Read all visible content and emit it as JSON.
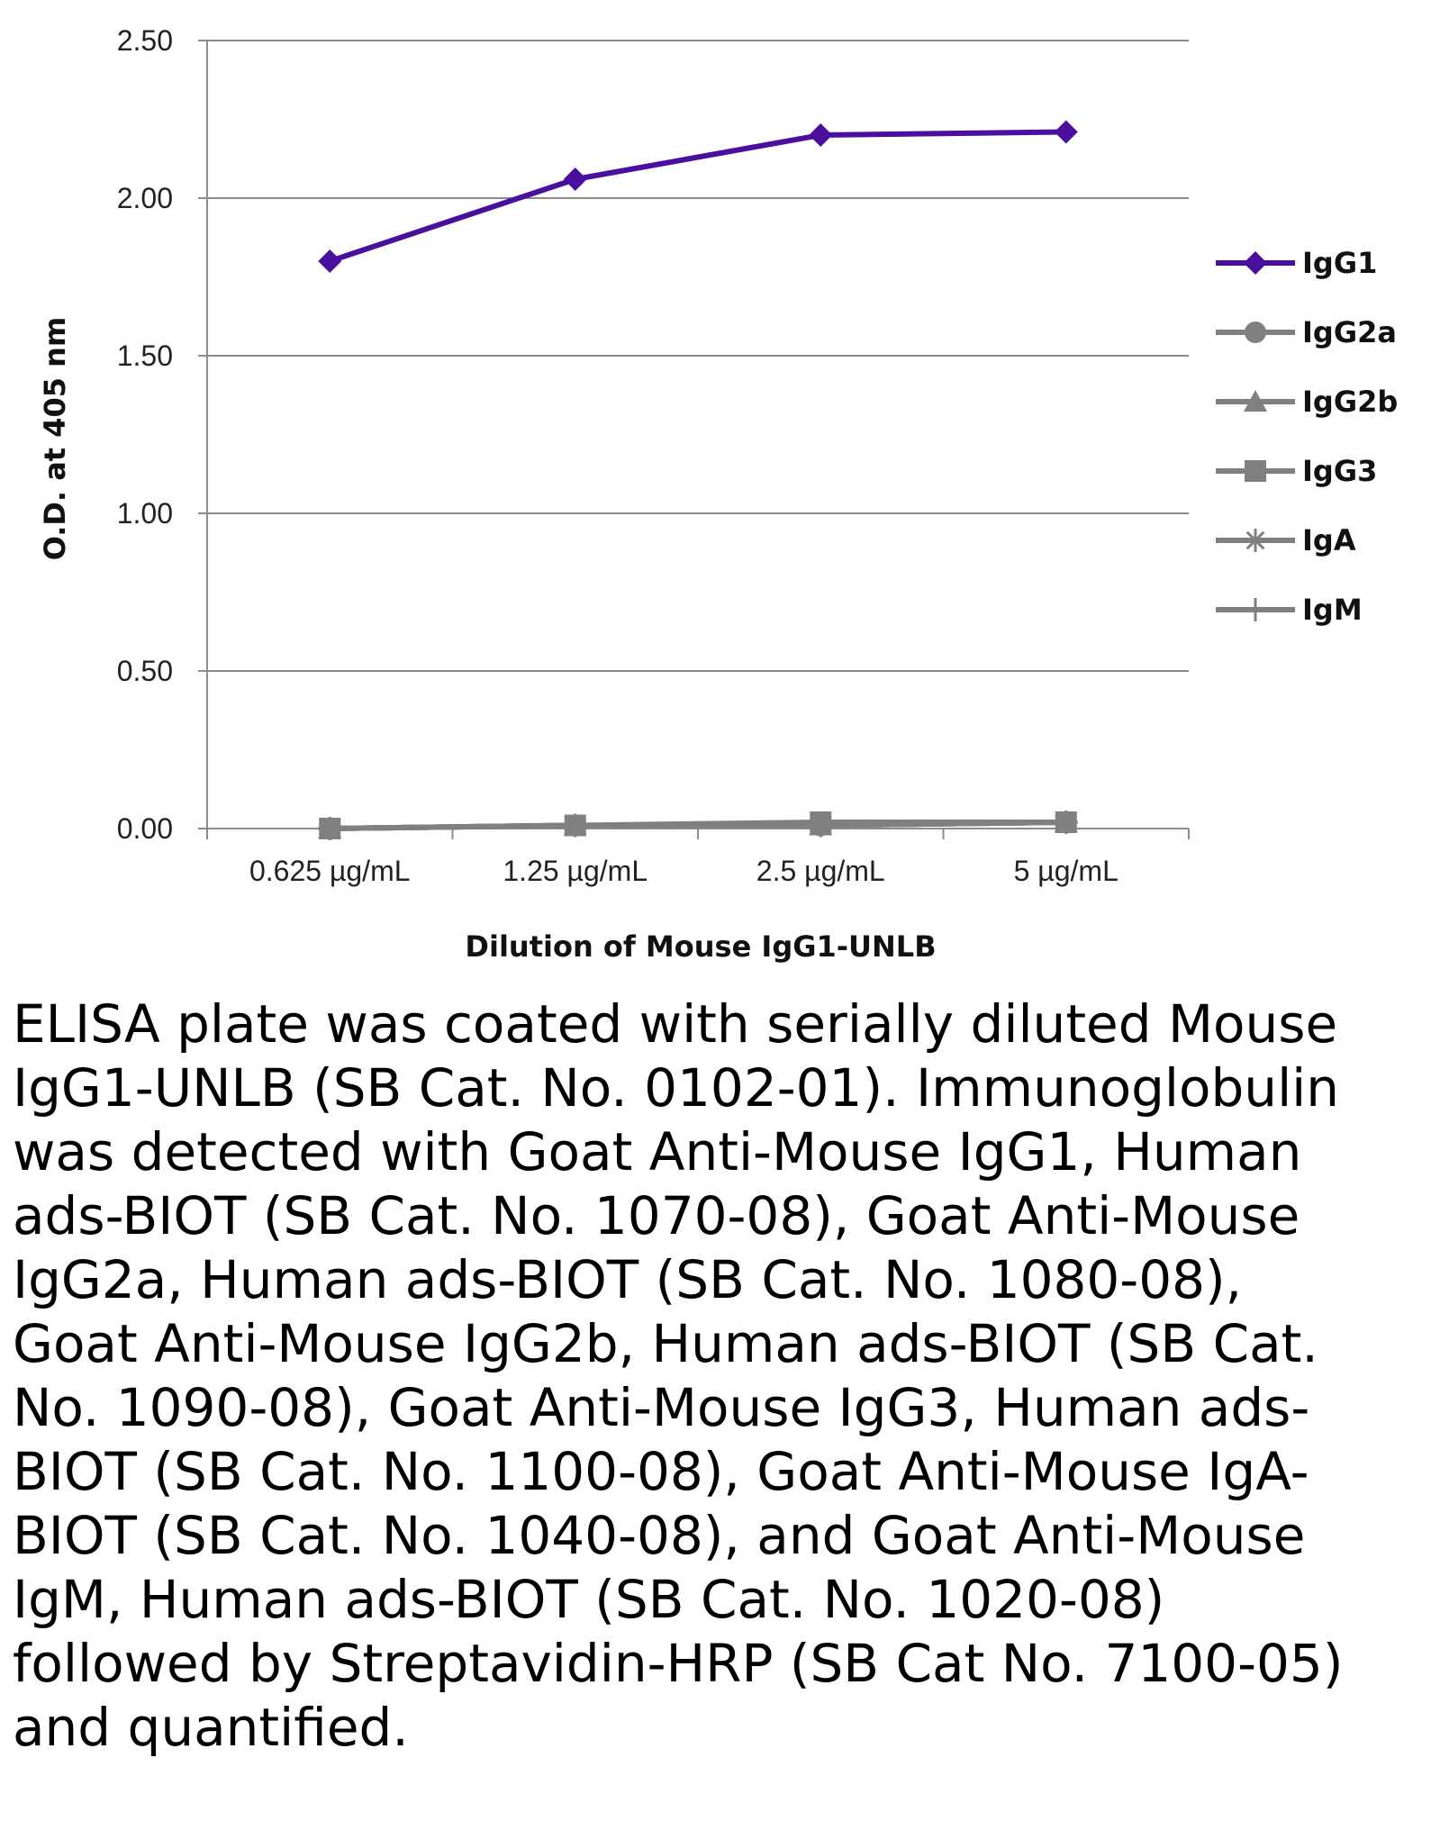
{
  "chart_data": {
    "type": "line",
    "title": "",
    "xlabel": "Dilution of Mouse IgG1-UNLB",
    "ylabel": "O.D. at 405 nm",
    "categories": [
      "0.625 µg/mL",
      "1.25 µg/mL",
      "2.5 µg/mL",
      "5 µg/mL"
    ],
    "ylim": [
      0,
      2.5
    ],
    "yticks": [
      "0.00",
      "0.50",
      "1.00",
      "1.50",
      "2.00",
      "2.50"
    ],
    "grid": true,
    "legend_position": "right",
    "series": [
      {
        "name": "IgG1",
        "marker": "diamond",
        "color": "#4b0fa0",
        "values": [
          1.8,
          2.06,
          2.2,
          2.21
        ]
      },
      {
        "name": "IgG2a",
        "marker": "circle",
        "color": "#808080",
        "values": [
          0.0,
          0.01,
          0.01,
          0.02
        ]
      },
      {
        "name": "IgG2b",
        "marker": "triangle",
        "color": "#808080",
        "values": [
          0.0,
          0.01,
          0.01,
          0.02
        ]
      },
      {
        "name": "IgG3",
        "marker": "square",
        "color": "#808080",
        "values": [
          0.0,
          0.01,
          0.02,
          0.02
        ]
      },
      {
        "name": "IgA",
        "marker": "asterisk",
        "color": "#808080",
        "values": [
          0.0,
          0.01,
          0.01,
          0.02
        ]
      },
      {
        "name": "IgM",
        "marker": "plus",
        "color": "#808080",
        "values": [
          0.0,
          0.01,
          0.01,
          0.02
        ]
      }
    ]
  },
  "caption": "ELISA plate was coated with serially diluted Mouse IgG1-UNLB (SB Cat. No. 0102-01). Immunoglobulin was detected with Goat Anti-Mouse IgG1, Human ads-BIOT (SB Cat. No. 1070-08), Goat Anti-Mouse IgG2a, Human ads-BIOT (SB Cat. No. 1080-08), Goat Anti-Mouse IgG2b, Human ads-BIOT (SB Cat. No. 1090-08), Goat Anti-Mouse IgG3, Human ads-BIOT (SB Cat. No. 1100-08), Goat Anti-Mouse IgA-BIOT (SB Cat. No. 1040-08), and Goat Anti-Mouse IgM, Human ads-BIOT (SB Cat. No. 1020-08) followed by Streptavidin-HRP (SB Cat No. 7100-05) and quantified."
}
